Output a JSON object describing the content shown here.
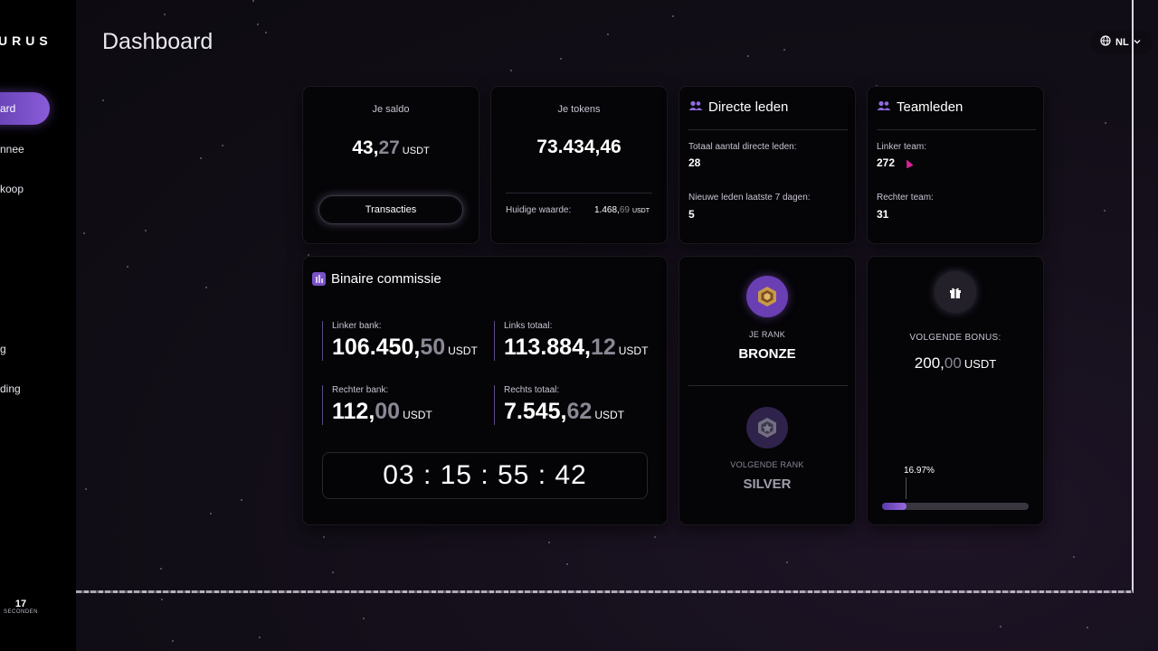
{
  "sidebar": {
    "brand": "URUS",
    "items": [
      {
        "label": "ard",
        "active": true
      },
      {
        "label": "nnee",
        "active": false
      },
      {
        "label": "koop",
        "active": false
      },
      {
        "label": "g",
        "active": false
      },
      {
        "label": "ding",
        "active": false
      }
    ],
    "timer": {
      "value": "17",
      "label": "SECONDEN"
    }
  },
  "header": {
    "title": "Dashboard",
    "language": "NL"
  },
  "saldo": {
    "label": "Je saldo",
    "amount_int": "43,",
    "amount_dec": "27",
    "unit": "USDT",
    "button": "Transacties"
  },
  "tokens": {
    "label": "Je tokens",
    "amount": "73.434,46",
    "value_label": "Huidige waarde:",
    "value_int": "1.468,",
    "value_dec": "69",
    "value_unit": "USDT"
  },
  "directe_leden": {
    "title": "Directe leden",
    "total_label": "Totaal aantal directe leden:",
    "total_value": "28",
    "new_label": "Nieuwe leden laatste 7 dagen:",
    "new_value": "5"
  },
  "teamleden": {
    "title": "Teamleden",
    "left_label": "Linker team:",
    "left_value": "272",
    "right_label": "Rechter team:",
    "right_value": "31"
  },
  "binair": {
    "title": "Binaire commissie",
    "linker_bank": {
      "label": "Linker bank:",
      "int": "106.450,",
      "dec": "50",
      "unit": "USDT"
    },
    "links_totaal": {
      "label": "Links totaal:",
      "int": "113.884,",
      "dec": "12",
      "unit": "USDT"
    },
    "rechter_bank": {
      "label": "Rechter bank:",
      "int": "112,",
      "dec": "00",
      "unit": "USDT"
    },
    "rechts_totaal": {
      "label": "Rechts totaal:",
      "int": "7.545,",
      "dec": "62",
      "unit": "USDT"
    },
    "countdown": "03 : 15 : 55 : 42"
  },
  "rank": {
    "current_label": "JE RANK",
    "current_value": "BRONZE",
    "next_label": "VOLGENDE RANK",
    "next_value": "SILVER"
  },
  "bonus": {
    "label": "VOLGENDE BONUS:",
    "amount_int": "200,",
    "amount_dec": "00",
    "unit": "USDT",
    "progress_text": "16.97%",
    "progress": 0.1697
  },
  "colors": {
    "accent": "#7a52c8",
    "background": "#0b0910",
    "card": "#050407"
  }
}
